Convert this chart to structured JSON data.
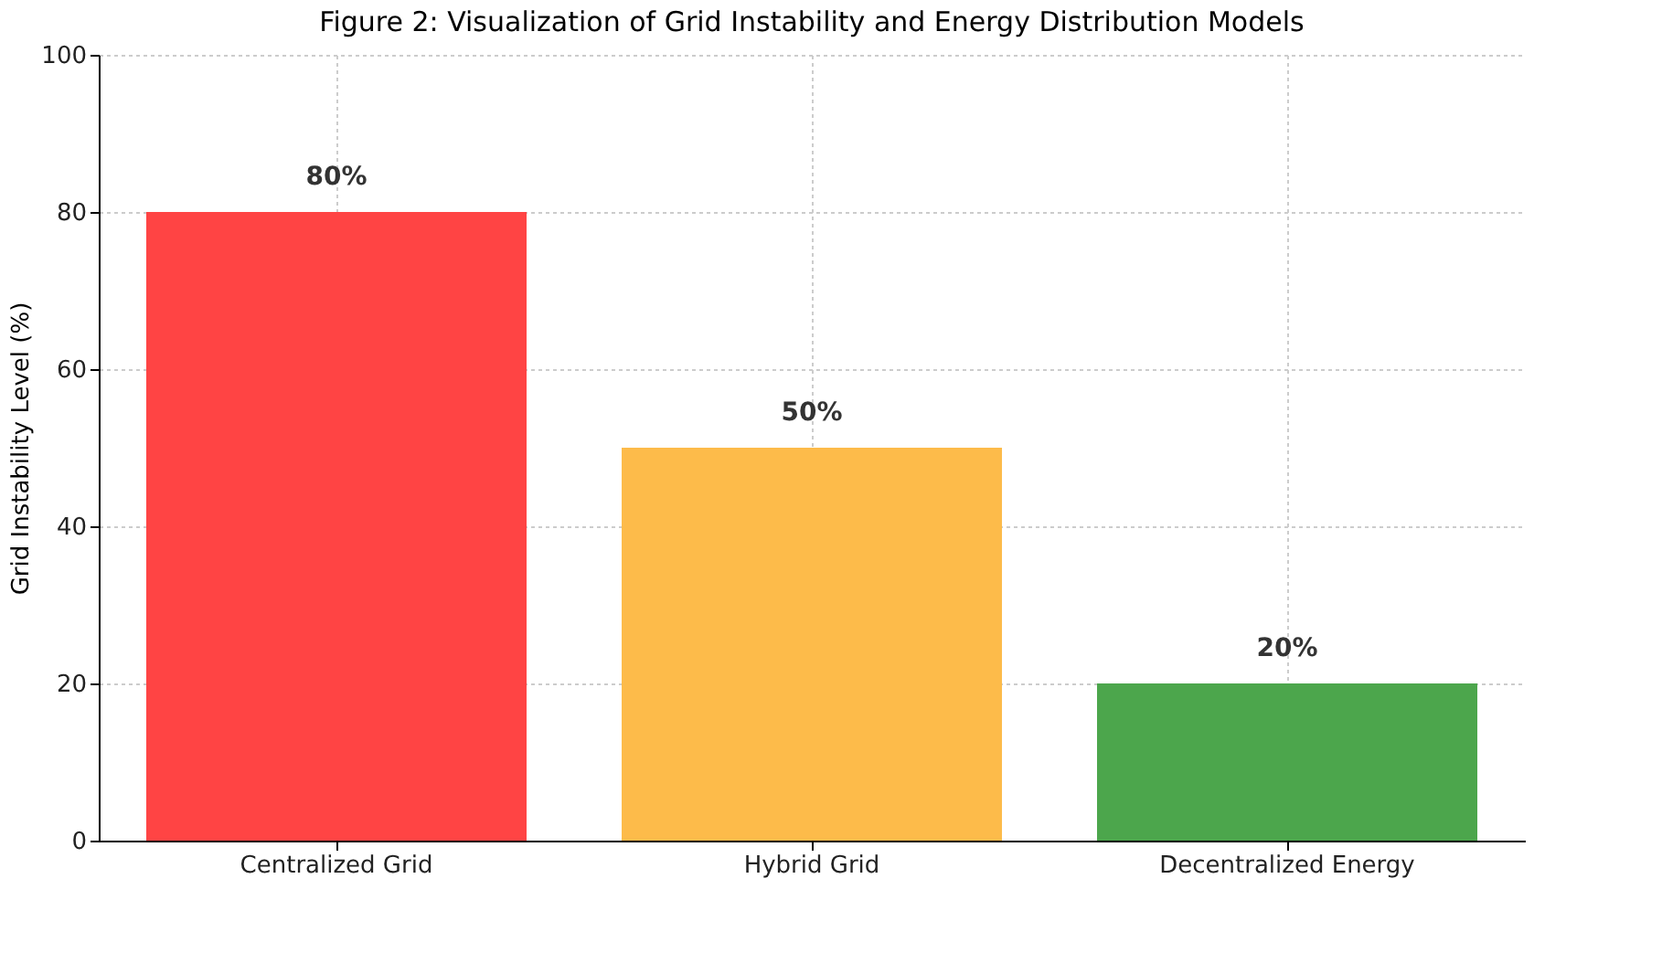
{
  "chart_data": {
    "type": "bar",
    "title": "Figure 2: Visualization of Grid Instability and Energy Distribution Models",
    "ylabel": "Grid Instability Level (%)",
    "categories": [
      "Centralized Grid",
      "Hybrid Grid",
      "Decentralized Energy"
    ],
    "values": [
      80,
      50,
      20
    ],
    "colors": [
      "#ff4444",
      "#fdbb4a",
      "#4ca64c"
    ],
    "value_labels": [
      "80%",
      "50%",
      "20%"
    ],
    "ylim": [
      0,
      100
    ],
    "yticks": [
      0,
      20,
      40,
      60,
      80,
      100
    ],
    "grid": true
  }
}
